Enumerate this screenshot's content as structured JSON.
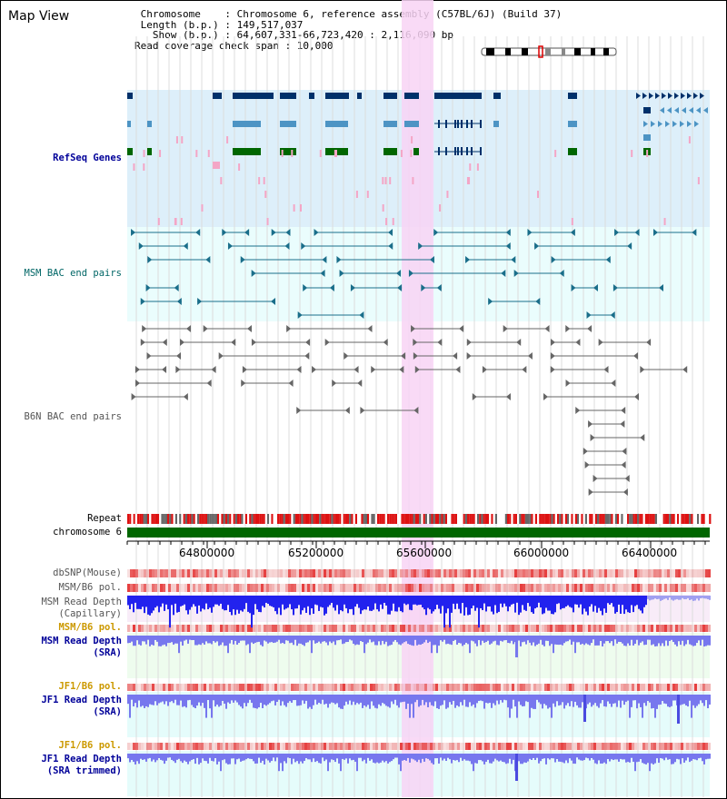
{
  "header": {
    "title": "Map View",
    "info_lines": [
      " Chromosome    : Chromosome 6, reference assembly (C57BL/6J) (Build 37)",
      " Length (b.p.) : 149,517,037",
      "   Show (b.p.) : 64,607,331-66,723,420 : 2,116,090 bp",
      "Read coverage check span : 10,000"
    ]
  },
  "tracks": {
    "refseq": "RefSeq Genes",
    "msm_bac": "MSM BAC end pairs",
    "b6n_bac": "B6N BAC end pairs",
    "repeat": "Repeat",
    "chromosome": "chromosome 6",
    "dbsnp": "dbSNP(Mouse)",
    "msm_b6_pol_1": "MSM/B6 pol.",
    "msm_read_depth_cap": "MSM Read Depth\n(Capillary)",
    "msm_b6_pol_2": "MSM/B6 pol.",
    "msm_read_depth_sra": "MSM Read Depth\n(SRA)",
    "jf1_b6_pol_1": "JF1/B6 pol.",
    "jf1_read_depth_sra": "JF1 Read Depth\n(SRA)",
    "jf1_b6_pol_2": "JF1/B6 pol.",
    "jf1_read_depth_trim": "JF1 Read Depth\n(SRA trimmed)"
  },
  "axis": {
    "ticks": [
      "64800000",
      "65200000",
      "65600000",
      "66000000",
      "66400000"
    ]
  },
  "colors": {
    "highlight": "#f8d4f4",
    "refseq_bg": "#ddeffa",
    "msm_bg": "#eafdfd",
    "depth_bg_green": "#eefcee",
    "depth_bg_cyan": "#e5fcfb",
    "gene_dark": "#00306a",
    "gene_mid": "#4d94c4",
    "gene_green": "#006600",
    "bac_teal": "#1a6e8a",
    "bac_gray": "#666666",
    "chrom_green": "#006600",
    "depth_blue": "#2222ee",
    "depth_light": "#7777ee",
    "label_blue": "#000099",
    "label_teal": "#006666",
    "label_gray": "#555555",
    "label_orange": "#cc9900"
  }
}
